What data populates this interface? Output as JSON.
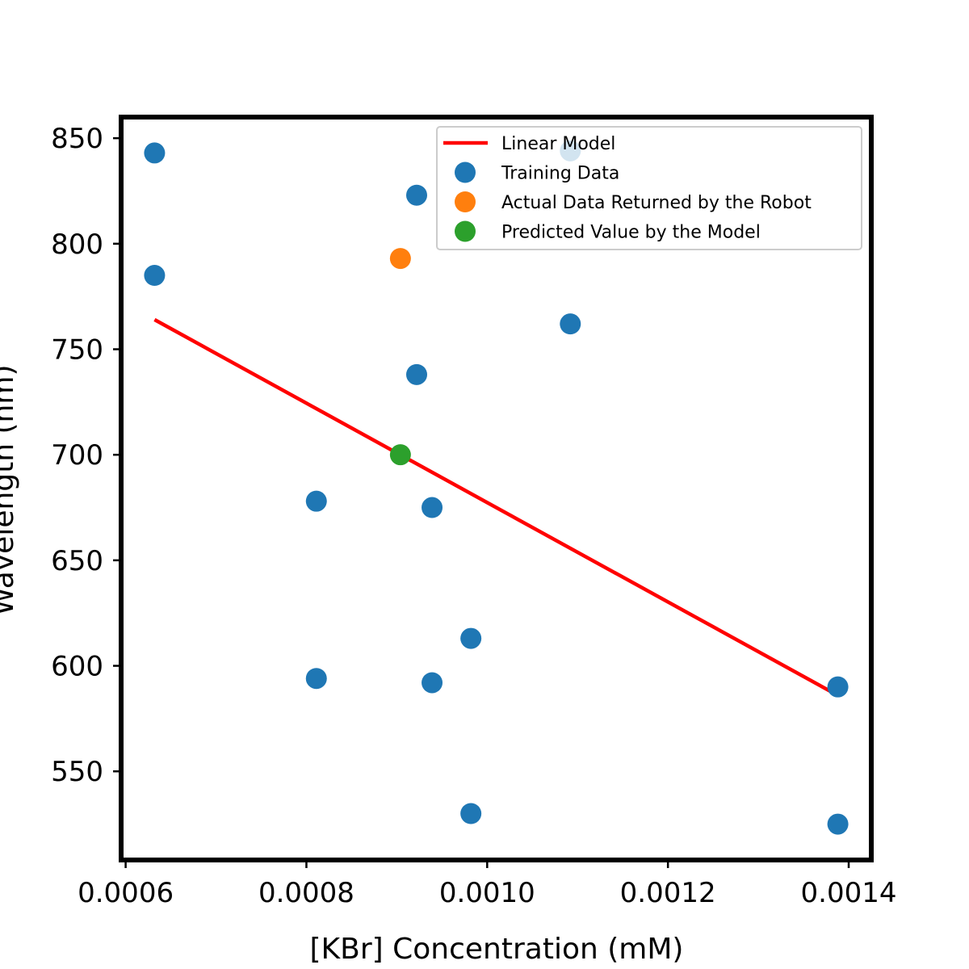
{
  "chart_data": {
    "type": "scatter",
    "title": "",
    "xlabel": "[KBr] Concentration (mM)",
    "ylabel": "Wavelength (nm)",
    "xlim": [
      0.000595,
      0.001425
    ],
    "ylim": [
      508,
      860
    ],
    "xticks": [
      0.0006,
      0.0008,
      0.001,
      0.0012,
      0.0014
    ],
    "xtick_labels": [
      "0.0006",
      "0.0008",
      "0.0010",
      "0.0012",
      "0.0014"
    ],
    "yticks": [
      550,
      600,
      650,
      700,
      750,
      800,
      850
    ],
    "ytick_labels": [
      "550",
      "600",
      "650",
      "700",
      "750",
      "800",
      "850"
    ],
    "grid": false,
    "legend_position": "top-right",
    "colors": {
      "linear_model": "#ff0000",
      "training": "#1f77b4",
      "actual": "#ff7f0e",
      "predicted": "#2ca02c"
    },
    "series": [
      {
        "name": "Linear Model",
        "kind": "line",
        "points": [
          {
            "x": 0.000632,
            "y": 764
          },
          {
            "x": 0.001388,
            "y": 586
          }
        ]
      },
      {
        "name": "Training Data",
        "kind": "scatter",
        "points": [
          {
            "x": 0.000632,
            "y": 843
          },
          {
            "x": 0.000632,
            "y": 785
          },
          {
            "x": 0.000811,
            "y": 678
          },
          {
            "x": 0.000811,
            "y": 594
          },
          {
            "x": 0.000922,
            "y": 823
          },
          {
            "x": 0.000922,
            "y": 738
          },
          {
            "x": 0.000939,
            "y": 675
          },
          {
            "x": 0.000939,
            "y": 592
          },
          {
            "x": 0.000982,
            "y": 613
          },
          {
            "x": 0.000982,
            "y": 530
          },
          {
            "x": 0.001092,
            "y": 844
          },
          {
            "x": 0.001092,
            "y": 762
          },
          {
            "x": 0.001388,
            "y": 590
          },
          {
            "x": 0.001388,
            "y": 525
          }
        ]
      },
      {
        "name": "Actual Data Returned by the Robot",
        "kind": "scatter",
        "points": [
          {
            "x": 0.000904,
            "y": 793
          }
        ]
      },
      {
        "name": "Predicted Value by the Model",
        "kind": "scatter",
        "points": [
          {
            "x": 0.000904,
            "y": 700
          }
        ]
      }
    ]
  }
}
